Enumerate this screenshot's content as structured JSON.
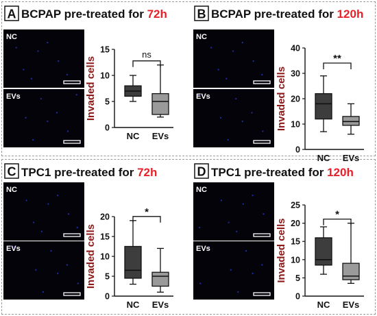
{
  "colors": {
    "title": "#111111",
    "time": "#e8202a",
    "ylabel": "#8b1a1a",
    "nc_box": "#3d3d3d",
    "evs_box": "#9a9a9a",
    "image_bg": "#030309",
    "scale_bar": "#ffffff",
    "dots": "#2a38d8"
  },
  "panels": [
    {
      "letter": "A",
      "title": "BCPAP pre-treated for ",
      "time": "72h",
      "images": [
        {
          "label": "NC"
        },
        {
          "label": "EVs"
        }
      ]
    },
    {
      "letter": "B",
      "title": "BCPAP pre-treated for ",
      "time": "120h",
      "images": [
        {
          "label": "NC"
        },
        {
          "label": "EVs"
        }
      ]
    },
    {
      "letter": "C",
      "title": "TPC1 pre-treated for ",
      "time": "72h",
      "images": [
        {
          "label": "NC"
        },
        {
          "label": "EVs"
        }
      ]
    },
    {
      "letter": "D",
      "title": "TPC1 pre-treated for ",
      "time": "120h",
      "images": [
        {
          "label": "NC"
        },
        {
          "label": "EVs"
        }
      ]
    }
  ],
  "chart_data": [
    {
      "type": "boxplot",
      "panel": "A",
      "ylabel": "Invaded cells",
      "ylim": [
        0,
        15
      ],
      "yticks": [
        0,
        5,
        10,
        15
      ],
      "categories": [
        "NC",
        "EVs"
      ],
      "boxes": [
        {
          "name": "NC",
          "min": 5,
          "q1": 6,
          "median": 7,
          "q3": 8,
          "max": 10
        },
        {
          "name": "EVs",
          "min": 2,
          "q1": 2.5,
          "median": 5,
          "q3": 6.5,
          "max": 12
        }
      ],
      "significance": "ns"
    },
    {
      "type": "boxplot",
      "panel": "B",
      "ylabel": "Invaded cells",
      "ylim": [
        0,
        40
      ],
      "yticks": [
        0,
        10,
        20,
        30,
        40
      ],
      "categories": [
        "NC",
        "EVs"
      ],
      "boxes": [
        {
          "name": "NC",
          "min": 7,
          "q1": 12,
          "median": 18,
          "q3": 22,
          "max": 29
        },
        {
          "name": "EVs",
          "min": 6,
          "q1": 9.5,
          "median": 11,
          "q3": 13,
          "max": 18
        }
      ],
      "significance": "**"
    },
    {
      "type": "boxplot",
      "panel": "C",
      "ylabel": "Invaded cells",
      "ylim": [
        0,
        20
      ],
      "yticks": [
        0,
        5,
        10,
        15,
        20
      ],
      "categories": [
        "NC",
        "EVs"
      ],
      "boxes": [
        {
          "name": "NC",
          "min": 3,
          "q1": 4.5,
          "median": 6.5,
          "q3": 12.5,
          "max": 19
        },
        {
          "name": "EVs",
          "min": 1,
          "q1": 2.5,
          "median": 5,
          "q3": 6,
          "max": 12
        }
      ],
      "significance": "*"
    },
    {
      "type": "boxplot",
      "panel": "D",
      "ylabel": "Invaded cells",
      "ylim": [
        0,
        25
      ],
      "yticks": [
        0,
        5,
        10,
        15,
        20,
        25
      ],
      "categories": [
        "NC",
        "EVs"
      ],
      "boxes": [
        {
          "name": "NC",
          "min": 6,
          "q1": 8.5,
          "median": 10,
          "q3": 16,
          "max": 19
        },
        {
          "name": "EVs",
          "min": 3.5,
          "q1": 4.5,
          "median": 5.5,
          "q3": 9,
          "max": 20
        }
      ],
      "significance": "*"
    }
  ]
}
